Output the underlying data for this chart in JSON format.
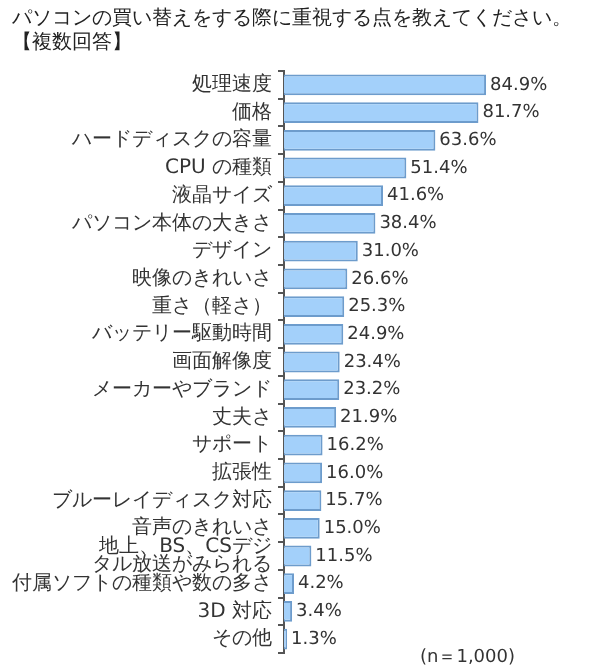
{
  "chart_data": {
    "type": "bar",
    "orientation": "horizontal",
    "title": "パソコンの買い替えをする際に重視する点を教えてください。【複数回答】",
    "categories": [
      "処理速度",
      "価格",
      "ハードディスクの容量",
      "CPU の種類",
      "液晶サイズ",
      "パソコン本体の大きさ",
      "デザイン",
      "映像のきれいさ",
      "重さ（軽さ）",
      "バッテリー駆動時間",
      "画面解像度",
      "メーカーやブランド",
      "丈夫さ",
      "サポート",
      "拡張性",
      "ブルーレイディスク対応",
      "音声のきれいさ",
      "地上、BS、CSデジタル放送がみられる",
      "付属ソフトの種類や数の多さ",
      "3D 対応",
      "その他"
    ],
    "values": [
      84.9,
      81.7,
      63.6,
      51.4,
      41.6,
      38.4,
      31.0,
      26.6,
      25.3,
      24.9,
      23.4,
      23.2,
      21.9,
      16.2,
      16.0,
      15.7,
      15.0,
      11.5,
      4.2,
      3.4,
      1.3
    ],
    "value_labels": [
      "84.9%",
      "81.7%",
      "63.6%",
      "51.4%",
      "41.6%",
      "38.4%",
      "31.0%",
      "26.6%",
      "25.3%",
      "24.9%",
      "23.4%",
      "23.2%",
      "21.9%",
      "16.2%",
      "16.0%",
      "15.7%",
      "15.0%",
      "11.5%",
      "4.2%",
      "3.4%",
      "1.3%"
    ],
    "color": "#a3d0fa",
    "annotations": [
      "(n＝1,000)"
    ]
  }
}
